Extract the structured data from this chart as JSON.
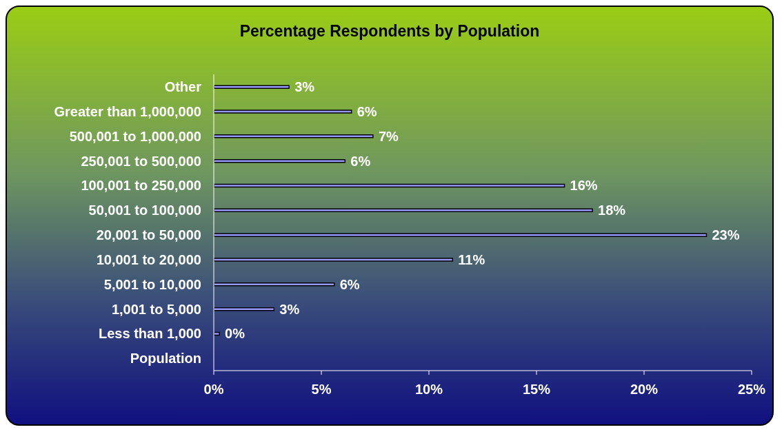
{
  "chart_data": {
    "type": "bar",
    "orientation": "horizontal",
    "title": "Percentage Respondents by Population",
    "categories": [
      "Other",
      "Greater than 1,000,000",
      "500,001 to 1,000,000",
      "250,001 to 500,000",
      "100,001 to 250,000",
      "50,001 to 100,000",
      "20,001 to 50,000",
      "10,001 to 20,000",
      "5,001 to 10,000",
      "1,001 to 5,000",
      "Less than 1,000",
      "Population"
    ],
    "values": [
      3.5,
      6.4,
      7.4,
      6.1,
      16.3,
      17.6,
      22.9,
      11.1,
      5.6,
      2.8,
      0.26,
      null
    ],
    "value_labels": [
      "3%",
      "6%",
      "7%",
      "6%",
      "16%",
      "18%",
      "23%",
      "11%",
      "6%",
      "3%",
      "0%",
      null
    ],
    "color": "#9999ff",
    "xlim": [
      0,
      25
    ],
    "xticks": [
      {
        "value": 0,
        "label": "0%"
      },
      {
        "value": 5,
        "label": "5%"
      },
      {
        "value": 10,
        "label": "10%"
      },
      {
        "value": 15,
        "label": "15%"
      },
      {
        "value": 20,
        "label": "20%"
      },
      {
        "value": 25,
        "label": "25%"
      }
    ],
    "grid": false,
    "legend": false
  }
}
